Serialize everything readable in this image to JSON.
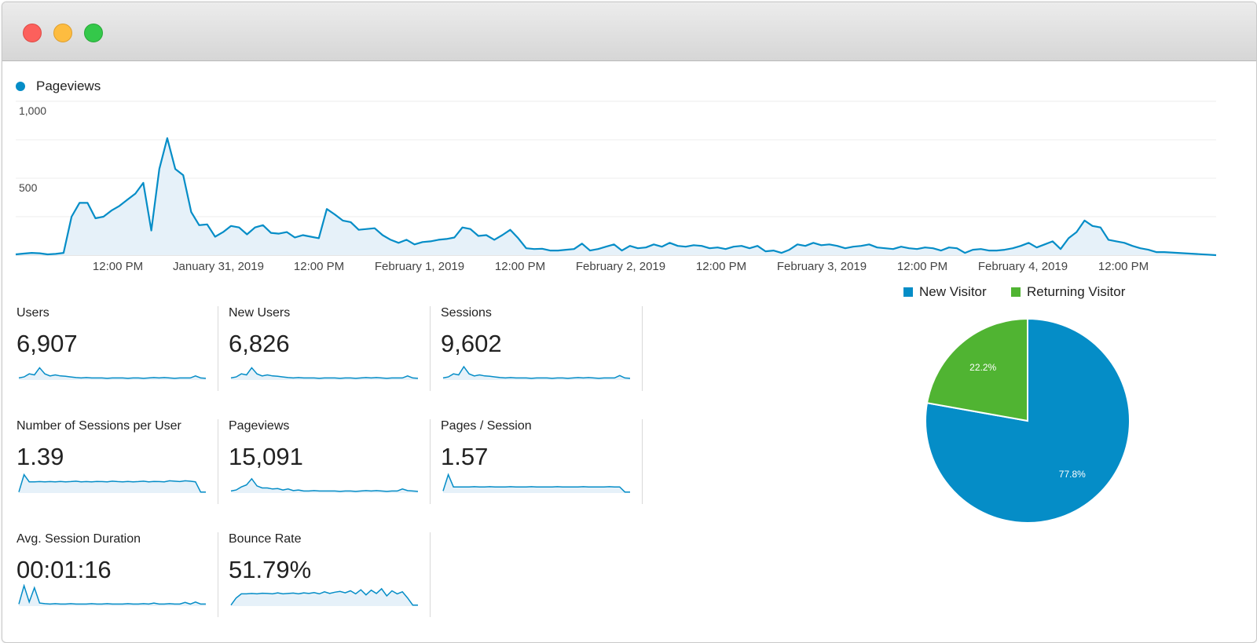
{
  "window": {
    "controls": [
      "close",
      "minimize",
      "zoom"
    ]
  },
  "main_chart": {
    "legend": "Pageviews",
    "color": "#058dc7",
    "y_ticks": [
      "1,000",
      "500"
    ],
    "x_labels": [
      "12:00 PM",
      "January 31, 2019",
      "12:00 PM",
      "February 1, 2019",
      "12:00 PM",
      "February 2, 2019",
      "12:00 PM",
      "February 3, 2019",
      "12:00 PM",
      "February 4, 2019",
      "12:00 PM"
    ]
  },
  "chart_data": [
    {
      "type": "area",
      "title": "",
      "series": [
        {
          "name": "Pageviews",
          "values": [
            5,
            10,
            15,
            12,
            5,
            8,
            15,
            250,
            340,
            340,
            240,
            250,
            290,
            320,
            360,
            400,
            470,
            160,
            560,
            760,
            560,
            520,
            280,
            195,
            200,
            120,
            150,
            190,
            180,
            135,
            180,
            195,
            145,
            140,
            150,
            115,
            130,
            120,
            110,
            300,
            265,
            225,
            215,
            165,
            170,
            175,
            130,
            100,
            80,
            100,
            70,
            85,
            90,
            100,
            105,
            115,
            180,
            170,
            125,
            130,
            100,
            130,
            165,
            110,
            45,
            40,
            42,
            30,
            30,
            35,
            40,
            75,
            30,
            40,
            55,
            70,
            30,
            60,
            45,
            50,
            70,
            55,
            80,
            60,
            55,
            65,
            60,
            45,
            50,
            40,
            55,
            60,
            45,
            60,
            25,
            30,
            15,
            35,
            70,
            60,
            80,
            65,
            70,
            60,
            45,
            55,
            60,
            70,
            50,
            45,
            40,
            55,
            45,
            40,
            50,
            45,
            30,
            50,
            45,
            15,
            35,
            40,
            30,
            30,
            35,
            45,
            60,
            80,
            50,
            70,
            90,
            40,
            110,
            150,
            225,
            190,
            180,
            100,
            90,
            80,
            60,
            45,
            35,
            20,
            20
          ]
        }
      ],
      "ylim": [
        0,
        1000
      ]
    },
    {
      "type": "pie",
      "slices": [
        {
          "label": "New Visitor",
          "value": 77.8,
          "color": "#058dc7"
        },
        {
          "label": "Returning Visitor",
          "value": 22.2,
          "color": "#50b432"
        }
      ]
    }
  ],
  "metrics": [
    {
      "title": "Users",
      "value": "6,907"
    },
    {
      "title": "New Users",
      "value": "6,826"
    },
    {
      "title": "Sessions",
      "value": "9,602"
    },
    {
      "title": "Number of Sessions per User",
      "value": "1.39"
    },
    {
      "title": "Pageviews",
      "value": "15,091"
    },
    {
      "title": "Pages / Session",
      "value": "1.57"
    },
    {
      "title": "Avg. Session Duration",
      "value": "00:01:16"
    },
    {
      "title": "Bounce Rate",
      "value": "51.79%"
    }
  ],
  "pie": {
    "legend": [
      {
        "label": "New Visitor",
        "color": "#058dc7"
      },
      {
        "label": "Returning Visitor",
        "color": "#50b432"
      }
    ],
    "labels": [
      "77.8%",
      "22.2%"
    ]
  }
}
